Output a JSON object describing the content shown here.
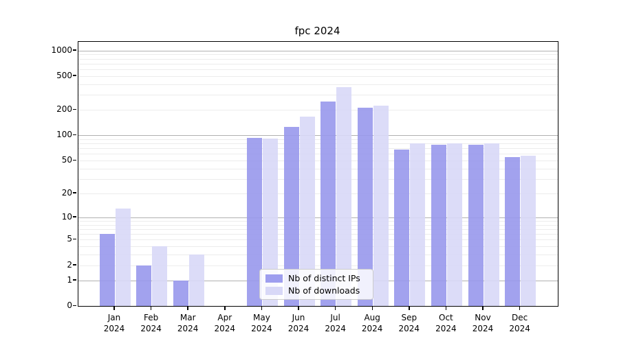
{
  "title": "fpc 2024",
  "legend": {
    "items": [
      {
        "label": "Nb of distinct IPs",
        "color": "#9e9eef"
      },
      {
        "label": "Nb of downloads",
        "color": "#d8d8f7"
      }
    ],
    "position": "lower center"
  },
  "chart_data": {
    "type": "bar",
    "title": "fpc 2024",
    "categories": [
      "Jan 2024",
      "Feb 2024",
      "Mar 2024",
      "Apr 2024",
      "May 2024",
      "Jun 2024",
      "Jul 2024",
      "Aug 2024",
      "Sep 2024",
      "Oct 2024",
      "Nov 2024",
      "Dec 2024"
    ],
    "x_tick_month_labels": [
      "Jan",
      "Feb",
      "Mar",
      "Apr",
      "May",
      "Jun",
      "Jul",
      "Aug",
      "Sep",
      "Oct",
      "Nov",
      "Dec"
    ],
    "x_tick_year_label": "2024",
    "series": [
      {
        "name": "Nb of distinct IPs",
        "color": "#9898ec",
        "values": [
          6,
          2,
          1,
          0,
          93,
          126,
          250,
          212,
          68,
          77,
          78,
          55
        ]
      },
      {
        "name": "Nb of downloads",
        "color": "#d8d8f7",
        "values": [
          13,
          4,
          3,
          0,
          92,
          165,
          370,
          223,
          80,
          80,
          81,
          57
        ]
      }
    ],
    "xlabel": "",
    "ylabel": "",
    "y_scale": "log10(1+value)",
    "ylim": [
      0,
      1260
    ],
    "y_tick_values": [
      1000,
      500,
      200,
      100,
      50,
      20,
      10,
      5,
      2,
      1,
      0
    ],
    "y_tick_labels": [
      "1000",
      "500",
      "200",
      "100",
      "50",
      "20",
      "10",
      "5",
      "2",
      "1",
      "0"
    ],
    "grid": "horizontal major (1,10,100,1000) dark + log minor light",
    "minor_grid_values": [
      2,
      3,
      4,
      5,
      6,
      7,
      8,
      9,
      20,
      30,
      40,
      50,
      60,
      70,
      80,
      90,
      200,
      300,
      400,
      500,
      600,
      700,
      800,
      900
    ],
    "major_grid_values": [
      1,
      10,
      100,
      1000
    ],
    "legend_position": "lower center"
  }
}
